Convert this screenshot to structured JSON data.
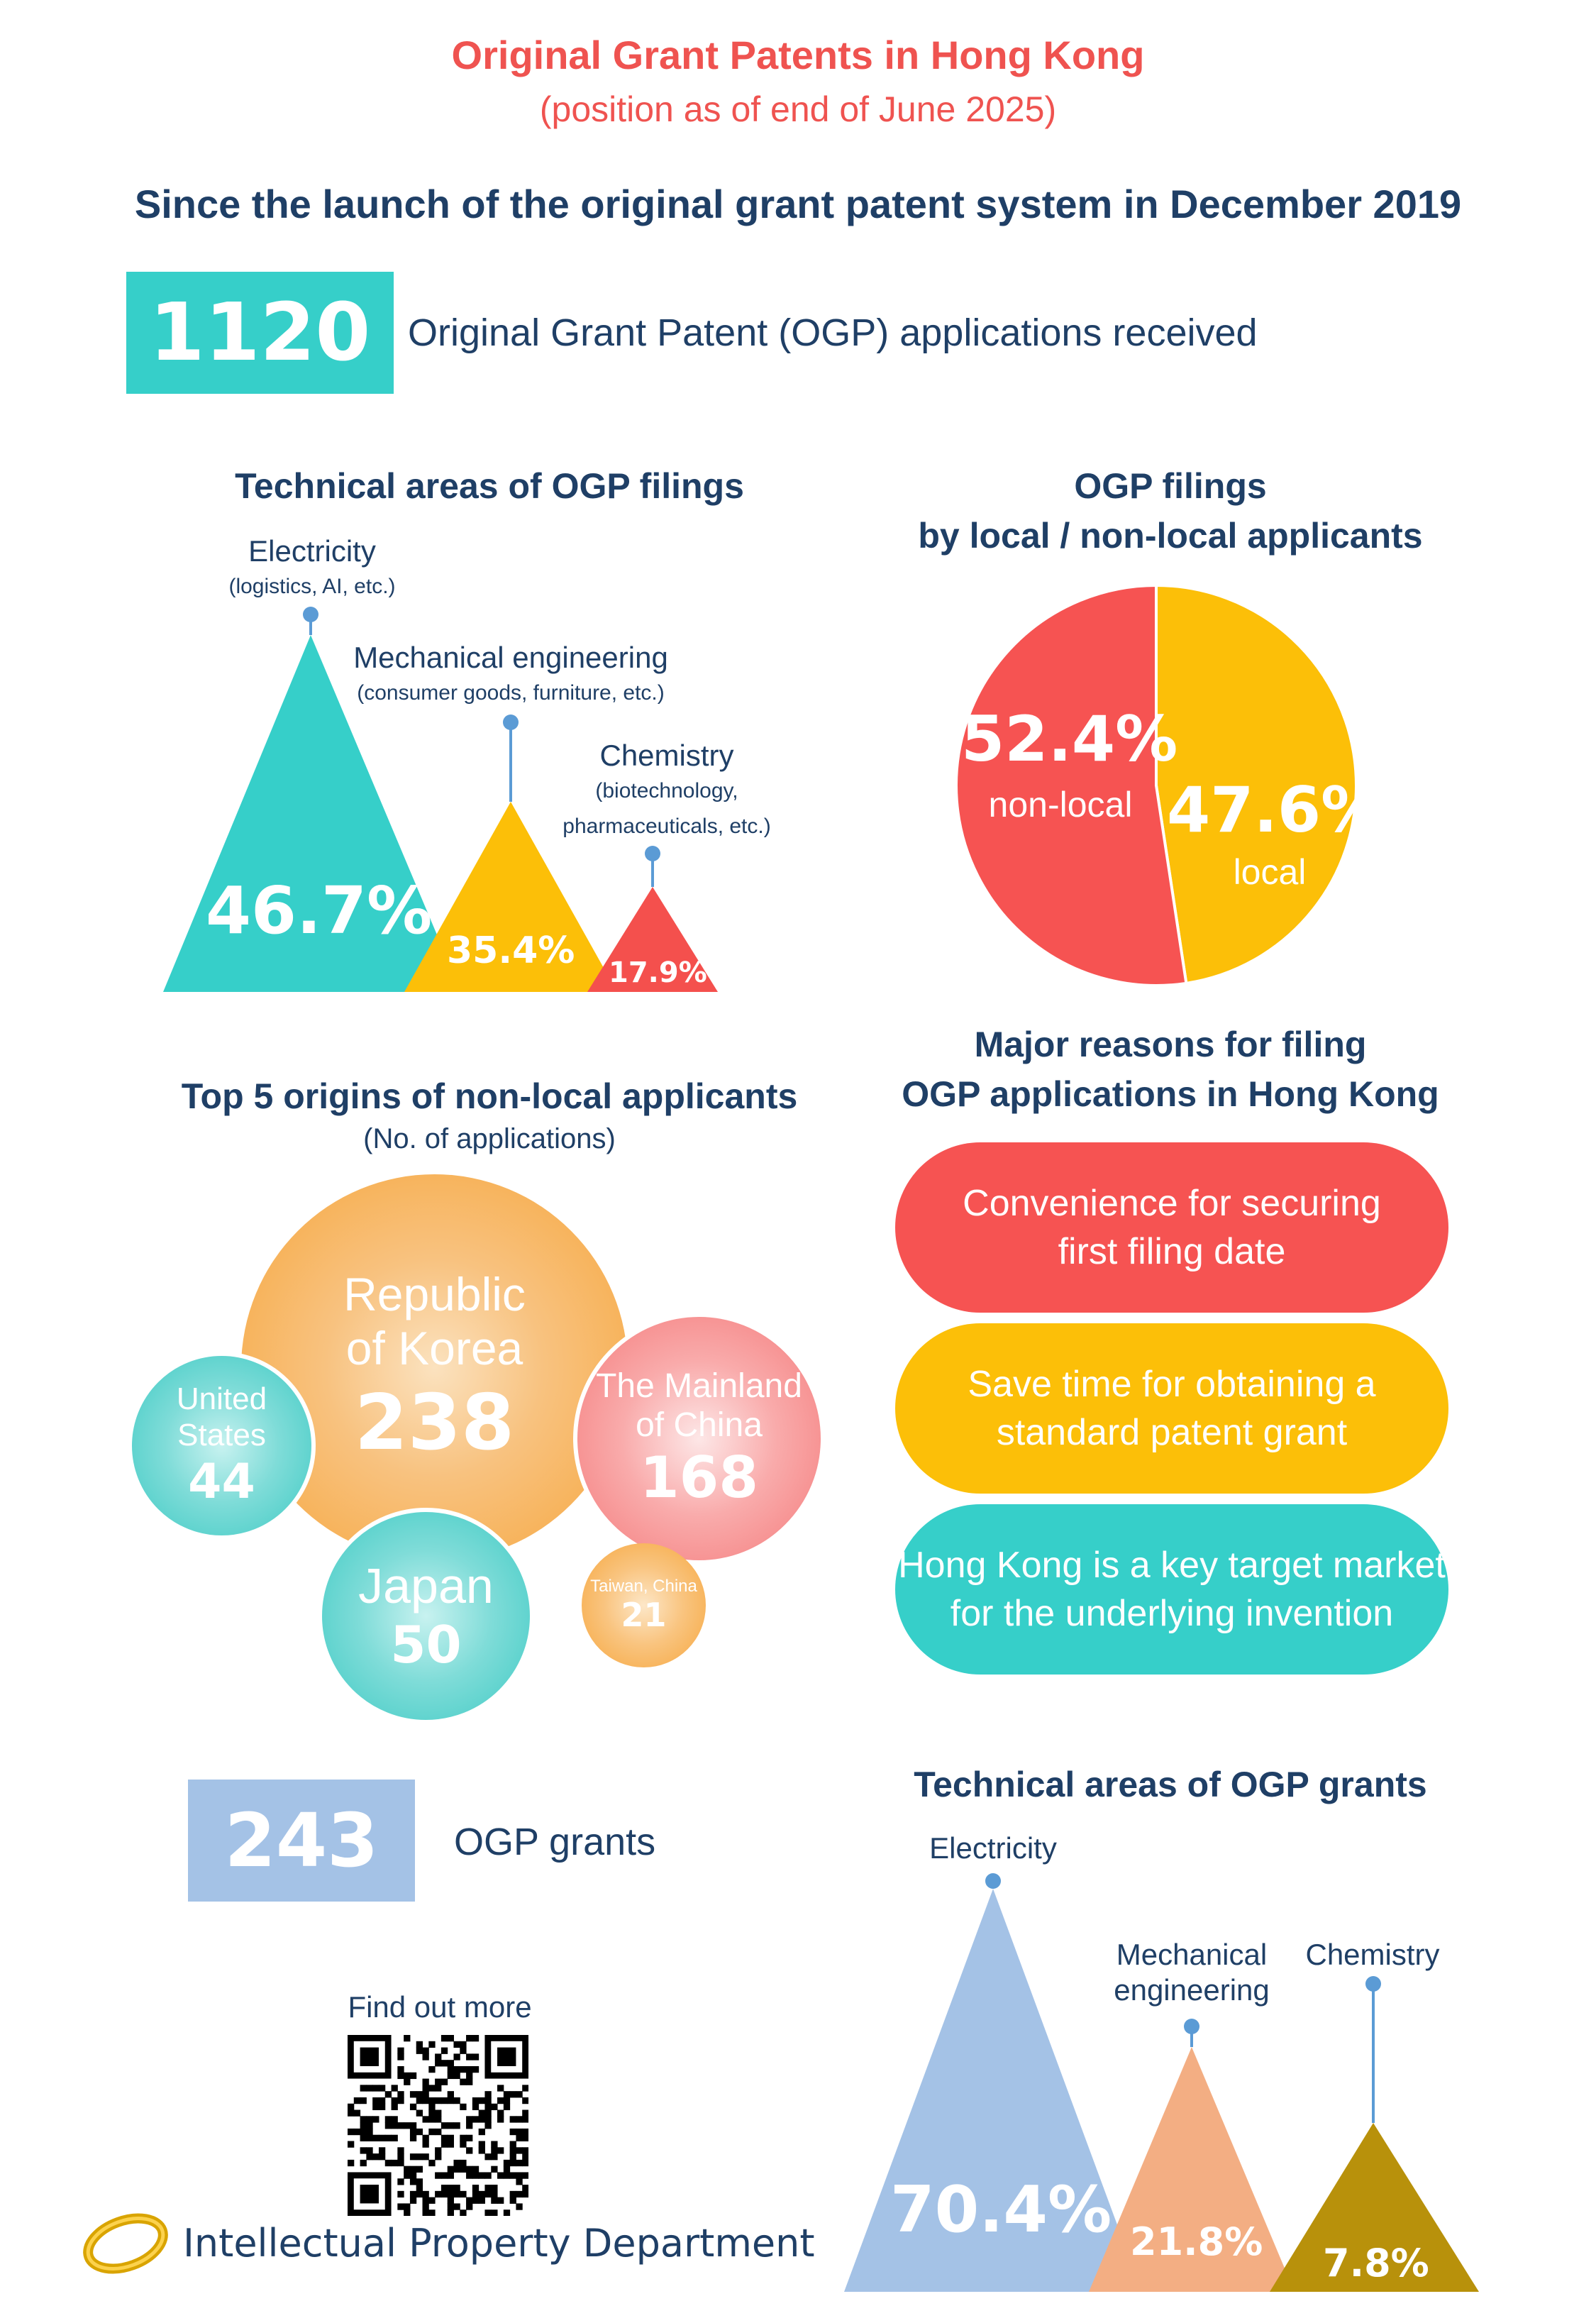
{
  "header": {
    "title": "Original Grant Patents in Hong Kong",
    "subtitle": "(position as of end of June 2025)",
    "since": "Since the launch of the original grant patent system in December 2019"
  },
  "applications": {
    "value": "1120",
    "label": "Original Grant Patent (OGP) applications received"
  },
  "filing_areas": {
    "title": "Technical areas of OGP filings",
    "items": [
      {
        "name": "Electricity",
        "sub": "(logistics, AI, etc.)",
        "pct": "46.7%",
        "value": 46.7,
        "color": "#36cfc9"
      },
      {
        "name": "Mechanical engineering",
        "sub": "(consumer goods, furniture, etc.)",
        "pct": "35.4%",
        "value": 35.4,
        "color": "#fcbf08"
      },
      {
        "name": "Chemistry",
        "sub1": "(biotechnology,",
        "sub2": "pharmaceuticals, etc.)",
        "pct": "17.9%",
        "value": 17.9,
        "color": "#f4504d"
      }
    ]
  },
  "local_split": {
    "title1": "OGP filings",
    "title2": "by local / non-local applicants",
    "nonlocal": {
      "pct": "52.4%",
      "label": "non-local",
      "value": 52.4,
      "color": "#f65352"
    },
    "local": {
      "pct": "47.6%",
      "label": "local",
      "value": 47.6,
      "color": "#fcbf08"
    }
  },
  "origins": {
    "title": "Top 5 origins of non-local applicants",
    "subtitle": "(No. of applications)",
    "items": [
      {
        "name1": "Republic",
        "name2": "of Korea",
        "count": "238",
        "value": 238
      },
      {
        "name1": "The Mainland",
        "name2": "of China",
        "count": "168",
        "value": 168
      },
      {
        "name1": "Japan",
        "count": "50",
        "value": 50
      },
      {
        "name1": "United",
        "name2": "States",
        "count": "44",
        "value": 44
      },
      {
        "name1": "Taiwan, China",
        "count": "21",
        "value": 21
      }
    ]
  },
  "reasons": {
    "title1": "Major reasons for filing",
    "title2": "OGP applications in Hong Kong",
    "items": [
      {
        "line1": "Convenience for securing",
        "line2": "first filing date",
        "color": "#f65352"
      },
      {
        "line1": "Save time for obtaining a",
        "line2": "standard patent grant",
        "color": "#fcbf08"
      },
      {
        "line1": "Hong Kong is a key target market",
        "line2": "for the underlying invention",
        "color": "#36cfc9"
      }
    ]
  },
  "grants": {
    "value": "243",
    "label": "OGP grants"
  },
  "grant_areas": {
    "title": "Technical areas of OGP grants",
    "items": [
      {
        "name": "Electricity",
        "pct": "70.4%",
        "value": 70.4,
        "color": "#a4c2e6"
      },
      {
        "name1": "Mechanical",
        "name2": "engineering",
        "pct": "21.8%",
        "value": 21.8,
        "color": "#f3ae83"
      },
      {
        "name": "Chemistry",
        "pct": "7.8%",
        "value": 7.8,
        "color": "#b8910b"
      }
    ]
  },
  "footer": {
    "find_more": "Find out more",
    "department": "Intellectual Property Department"
  }
}
